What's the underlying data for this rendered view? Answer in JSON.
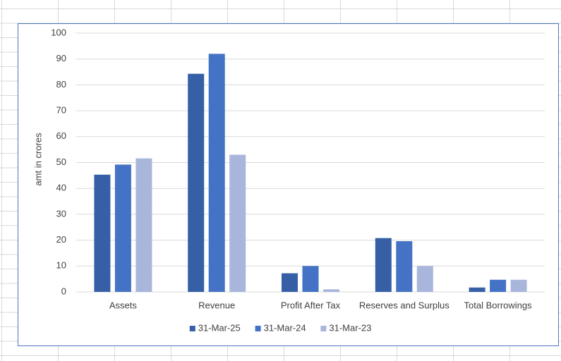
{
  "chart_data": {
    "type": "bar",
    "y_label": "amt in crores",
    "categories": [
      "Assets",
      "Revenue",
      "Profit After Tax",
      "Reserves and Surplus",
      "Total Borrowings"
    ],
    "series": [
      {
        "name": "31-Mar-25",
        "color": "#365fa6",
        "values": [
          45.3,
          84.3,
          7.2,
          20.8,
          1.7
        ]
      },
      {
        "name": "31-Mar-24",
        "color": "#4472c4",
        "values": [
          49.2,
          92,
          10,
          19.6,
          4.7
        ]
      },
      {
        "name": "31-Mar-23",
        "color": "#a9b6dc",
        "values": [
          51.6,
          53,
          1,
          10,
          4.7
        ]
      }
    ],
    "ylim": [
      0,
      100
    ],
    "yticks": [
      0,
      10,
      20,
      30,
      40,
      50,
      60,
      70,
      80,
      90,
      100
    ],
    "grid": true,
    "legend": "bottom",
    "legend_text_color": "#e00000",
    "y_label_color": "#e00000"
  }
}
